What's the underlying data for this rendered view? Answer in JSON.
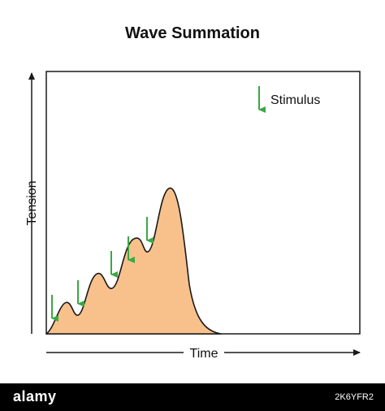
{
  "title": "Wave Summation",
  "axes": {
    "x_label": "Time",
    "y_label": "Tension"
  },
  "legend": {
    "label": "Stimulus",
    "marker_color": "#3aa845"
  },
  "curve": {
    "fill": "#f8c18c",
    "stroke": "#1a1a1a"
  },
  "stimulus_count": 5,
  "watermark": {
    "brand": "alamy",
    "image_code": "2K6YFR2"
  }
}
